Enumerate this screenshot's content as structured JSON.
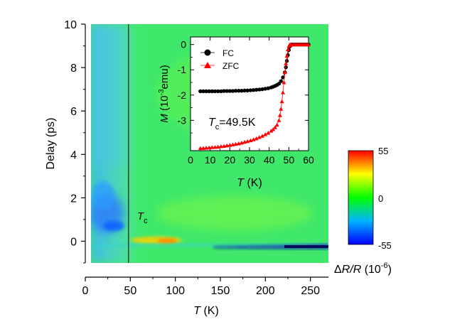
{
  "chart_data": [
    {
      "type": "heatmap",
      "x": {
        "label": "T",
        "unit": "(K)",
        "range": [
          0,
          270
        ],
        "ticks": [
          0,
          50,
          100,
          150,
          200,
          250
        ],
        "tick_labels": [
          "0",
          "50",
          "100",
          "150",
          "200",
          "250"
        ]
      },
      "y": {
        "label": "Delay (ps)",
        "range": [
          -1,
          10
        ],
        "ticks": [
          0,
          2,
          4,
          6,
          8,
          10
        ],
        "tick_labels": [
          "0",
          "2",
          "4",
          "6",
          "8",
          "10"
        ]
      },
      "colorbar": {
        "label_prefix": "Δ",
        "label_var": "R/R",
        "label_unit": " (10",
        "label_exp": "-6",
        "label_close": ")",
        "range": [
          -55,
          55
        ],
        "tick_labels": [
          "55",
          "0",
          "-55"
        ]
      },
      "marker": {
        "x": 48,
        "label": "T",
        "label_sub": "c"
      },
      "features": [
        {
          "x": [
            0,
            45
          ],
          "y": [
            0.2,
            3.5
          ],
          "value": -25
        },
        {
          "x": [
            48,
            115
          ],
          "y": [
            -0.1,
            0.1
          ],
          "value": 20
        },
        {
          "x": [
            140,
            270
          ],
          "y": [
            -0.35,
            -0.15
          ],
          "value": -45
        }
      ]
    },
    {
      "type": "scatter",
      "x": {
        "label": "T",
        "unit": " (K)",
        "range": [
          0,
          60
        ],
        "ticks": [
          0,
          10,
          20,
          30,
          40,
          50,
          60
        ],
        "tick_labels": [
          "0",
          "10",
          "20",
          "30",
          "40",
          "50",
          "60"
        ]
      },
      "y": {
        "label": "M",
        "unit_open": " (10",
        "unit_exp": "-3",
        "unit_close": "emu)",
        "range": [
          -4.2,
          0.3
        ],
        "ticks": [
          0,
          -1,
          -2,
          -3
        ],
        "tick_labels": [
          "0",
          "-1",
          "-2",
          "-3"
        ]
      },
      "annotation": {
        "prefix": "T",
        "sub": "c",
        "suffix": "=49.5K"
      },
      "legend_position": "top-left",
      "series": [
        {
          "name": "FC",
          "color": "#000000",
          "marker": "circle",
          "x": [
            5,
            6.5,
            8,
            9.5,
            11,
            12.5,
            14,
            15.5,
            17,
            18.5,
            20,
            21.5,
            23,
            24.5,
            26,
            27.5,
            29,
            30.5,
            32,
            33.5,
            35,
            36.5,
            38,
            39.5,
            41,
            42,
            43,
            44,
            45,
            46,
            47,
            48,
            48.5,
            49,
            49.5,
            50,
            50.5,
            51,
            51.5,
            52,
            53,
            54,
            55,
            56,
            57,
            58,
            59,
            60
          ],
          "y": [
            -1.85,
            -1.85,
            -1.85,
            -1.85,
            -1.85,
            -1.85,
            -1.85,
            -1.85,
            -1.84,
            -1.84,
            -1.84,
            -1.84,
            -1.83,
            -1.83,
            -1.83,
            -1.82,
            -1.82,
            -1.81,
            -1.8,
            -1.79,
            -1.78,
            -1.77,
            -1.75,
            -1.73,
            -1.7,
            -1.67,
            -1.64,
            -1.6,
            -1.55,
            -1.45,
            -1.3,
            -1.1,
            -0.9,
            -0.65,
            -0.42,
            -0.22,
            -0.08,
            -0.02,
            0,
            0,
            0,
            0,
            0,
            0,
            0,
            0,
            0,
            0
          ]
        },
        {
          "name": "ZFC",
          "color": "#ff0000",
          "marker": "triangle",
          "x": [
            5,
            6.5,
            8,
            9.5,
            11,
            12.5,
            14,
            15.5,
            17,
            18.5,
            20,
            21.5,
            23,
            24.5,
            26,
            27.5,
            29,
            30.5,
            32,
            33.5,
            35,
            36.5,
            38,
            39.5,
            41,
            42,
            43,
            44,
            45,
            45.5,
            46,
            46.5,
            47,
            47.5,
            48,
            48.5,
            49,
            49.5,
            50,
            50.5,
            51,
            52,
            53,
            54,
            55,
            56,
            57,
            58,
            59,
            60
          ],
          "y": [
            -4.1,
            -4.1,
            -4.09,
            -4.08,
            -4.07,
            -4.06,
            -4.05,
            -4.03,
            -4.02,
            -4.0,
            -3.98,
            -3.96,
            -3.94,
            -3.92,
            -3.89,
            -3.86,
            -3.83,
            -3.8,
            -3.76,
            -3.72,
            -3.67,
            -3.62,
            -3.56,
            -3.5,
            -3.42,
            -3.36,
            -3.28,
            -3.18,
            -3.0,
            -2.8,
            -2.55,
            -2.25,
            -1.9,
            -1.5,
            -1.1,
            -0.75,
            -0.45,
            -0.2,
            -0.06,
            0,
            0,
            0,
            0,
            0,
            0,
            0,
            0,
            0,
            0,
            0
          ]
        }
      ]
    }
  ]
}
